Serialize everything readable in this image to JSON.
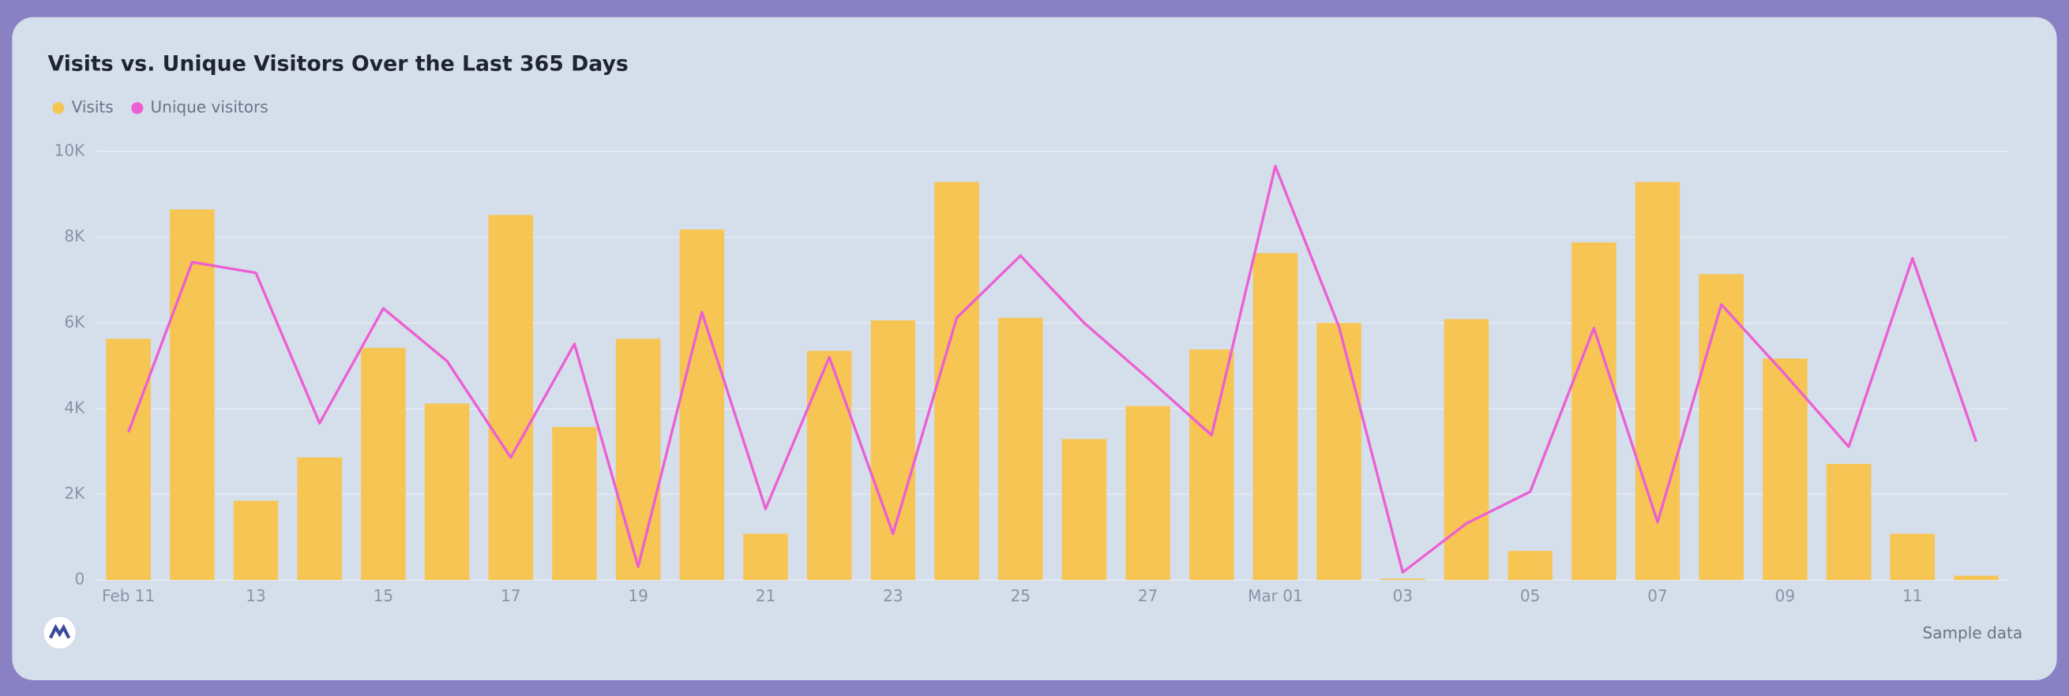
{
  "chart_data": {
    "type": "bar",
    "title": "Visits vs. Unique Visitors Over the Last 365 Days",
    "footnote": "Sample data",
    "categories": [
      "Feb 11",
      null,
      "13",
      null,
      "15",
      null,
      "17",
      null,
      "19",
      null,
      "21",
      null,
      "23",
      null,
      "25",
      null,
      "27",
      null,
      "Mar 01",
      null,
      "03",
      null,
      "05",
      null,
      "07",
      null,
      "09",
      null,
      "11",
      null
    ],
    "series": [
      {
        "name": "Visits",
        "type": "bar",
        "color": "#f6c554",
        "values": [
          5630,
          8650,
          1850,
          2860,
          5420,
          4120,
          8520,
          3570,
          5630,
          8180,
          1080,
          5350,
          6060,
          9290,
          6120,
          3290,
          4060,
          5380,
          7630,
          6000,
          30,
          6090,
          680,
          7880,
          9290,
          7140,
          5170,
          2710,
          1080,
          100
        ]
      },
      {
        "name": "Unique visitors",
        "type": "line",
        "color": "#ec5fd4",
        "values": [
          3450,
          7420,
          7170,
          3660,
          6340,
          5110,
          2860,
          5510,
          310,
          6250,
          1660,
          5200,
          1080,
          6120,
          7570,
          6000,
          4710,
          3380,
          9660,
          5910,
          180,
          1320,
          2060,
          5880,
          1350,
          6430,
          4800,
          3110,
          7510,
          3230
        ]
      }
    ],
    "ylim": [
      0,
      10000
    ],
    "yticks": [
      0,
      {
        "value": 2000,
        "label": "2K"
      },
      {
        "value": 4000,
        "label": "4K"
      },
      {
        "value": 6000,
        "label": "6K"
      },
      {
        "value": 8000,
        "label": "8K"
      },
      {
        "value": 10000,
        "label": "10K"
      }
    ],
    "grid": true
  }
}
